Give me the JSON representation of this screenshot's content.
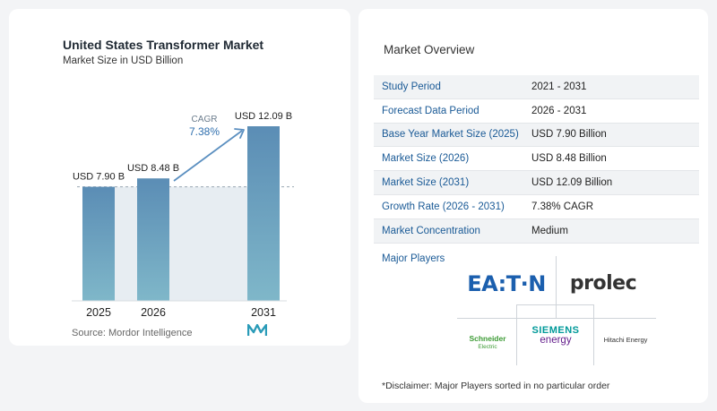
{
  "chart_card": {
    "title": "United States Transformer Market",
    "subtitle": "Market Size in USD Billion",
    "source": "Source:  Mordor Intelligence"
  },
  "chart_data": {
    "type": "bar",
    "title": "United States Transformer Market",
    "subtitle": "Market Size in USD Billion",
    "categories": [
      "2025",
      "2026",
      "2031"
    ],
    "values": [
      7.9,
      8.48,
      12.09
    ],
    "data_labels": [
      "USD 7.90 B",
      "USD 8.48 B",
      "USD 12.09 B"
    ],
    "cagr_label": "CAGR",
    "cagr_value": "7.38%",
    "ylabel": "",
    "xlabel": "",
    "ylim": [
      0,
      12.09
    ],
    "grid": false,
    "bar_color_top": "#5b8db5",
    "bar_color_bottom": "#7fb7c9",
    "arrow_color": "#5b8fc0",
    "reference_band_color": "#dfe7ee"
  },
  "overview": {
    "title": "Market Overview",
    "rows": [
      {
        "label": "Study Period",
        "value": "2021 - 2031"
      },
      {
        "label": "Forecast Data Period",
        "value": "2026 - 2031"
      },
      {
        "label": "Base Year Market Size (2025)",
        "value": "USD 7.90 Billion"
      },
      {
        "label": "Market Size (2026)",
        "value": "USD 8.48 Billion"
      },
      {
        "label": "Market Size (2031)",
        "value": "USD 12.09 Billion"
      },
      {
        "label": "Growth Rate (2026 - 2031)",
        "value": "7.38% CAGR"
      },
      {
        "label": "Market Concentration",
        "value": "Medium"
      }
    ],
    "players_title": "Major Players",
    "players": {
      "eaton": "EA:T·N",
      "prolec": "prolec",
      "schneider": "Schneider",
      "schneider_sub": "Electric",
      "siemens_1": "SIEMENS",
      "siemens_2": "energy",
      "hitachi": "Hitachi Energy"
    },
    "disclaimer": "*Disclaimer: Major Players sorted in no particular order"
  },
  "colors": {
    "label_blue": "#1a5a96",
    "eaton_blue": "#1b5fae",
    "siemens_teal": "#009999",
    "siemens_purple": "#641e8c",
    "schneider_green": "#3d9b35"
  },
  "icons": {
    "brand_logo": "mordor-intelligence-logo-icon"
  }
}
